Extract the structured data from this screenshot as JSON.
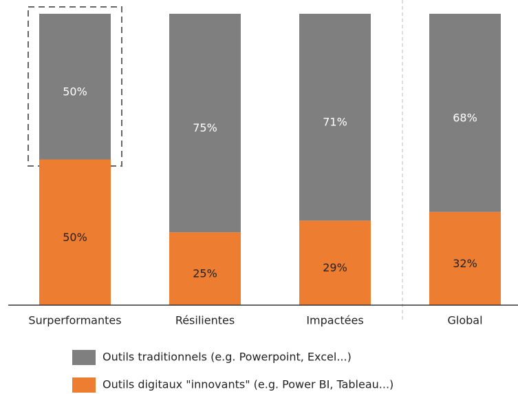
{
  "chart_data": {
    "type": "stacked_bar",
    "categories": [
      "Surperformantes",
      "Résilientes",
      "Impactées",
      "Global"
    ],
    "series": [
      {
        "name": "Outils traditionnels (e.g. Powerpoint, Excel...)",
        "color": "#7f7f7f",
        "values": [
          50,
          75,
          71,
          68
        ],
        "value_labels": [
          "50%",
          "75%",
          "71%",
          "68%"
        ]
      },
      {
        "name": "Outils digitaux \"innovants\" (e.g. Power BI, Tableau...)",
        "color": "#ed7d31",
        "values": [
          50,
          25,
          29,
          32
        ],
        "value_labels": [
          "50%",
          "25%",
          "29%",
          "32%"
        ]
      }
    ]
  }
}
